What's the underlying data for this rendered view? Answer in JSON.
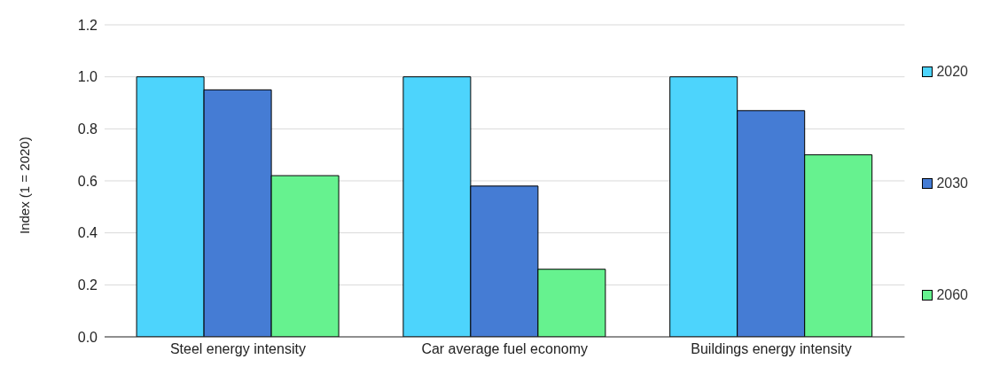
{
  "chart_data": {
    "type": "bar",
    "ylabel": "Index (1 = 2020)",
    "categories": [
      "Steel energy intensity",
      "Car average fuel economy",
      "Buildings energy intensity"
    ],
    "series": [
      {
        "name": "2020",
        "color": "#4dd4fc",
        "values": [
          1.0,
          1.0,
          1.0
        ]
      },
      {
        "name": "2030",
        "color": "#457cd4",
        "values": [
          0.95,
          0.58,
          0.87
        ]
      },
      {
        "name": "2060",
        "color": "#66f28f",
        "values": [
          0.62,
          0.26,
          0.7
        ]
      }
    ],
    "ylim": [
      0,
      1.2
    ],
    "yticks": [
      {
        "value": 0,
        "label": "0.0"
      },
      0.2,
      0.4,
      0.6,
      0.8,
      {
        "value": 1,
        "label": "1.0"
      },
      1.2
    ],
    "grid": "y",
    "legend": "right"
  }
}
